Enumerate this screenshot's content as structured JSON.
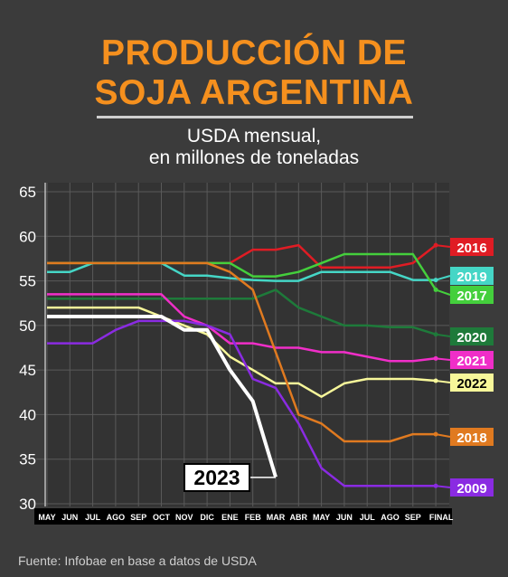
{
  "header": {
    "title_line1": "PRODUCCIÓN DE",
    "title_line2": "SOJA ARGENTINA",
    "subtitle_line1": "USDA mensual,",
    "subtitle_line2": "en millones de toneladas"
  },
  "footer": {
    "source": "Fuente: Infobae en base a datos de USDA"
  },
  "chart_data": {
    "type": "line",
    "categories": [
      "MAY",
      "JUN",
      "JUL",
      "AGO",
      "SEP",
      "OCT",
      "NOV",
      "DIC",
      "ENE",
      "FEB",
      "MAR",
      "ABR",
      "MAY",
      "JUN",
      "JUL",
      "AGO",
      "SEP",
      "FINAL"
    ],
    "ylim": [
      30,
      65
    ],
    "yticks": [
      30,
      35,
      40,
      45,
      50,
      55,
      60,
      65
    ],
    "grid": true,
    "legend": "right-end-labels",
    "series": [
      {
        "name": "2016",
        "color": "#e01c24",
        "values": [
          57,
          57,
          57,
          57,
          57,
          57,
          57,
          57,
          57,
          58.5,
          58.5,
          59,
          56.5,
          56.5,
          56.5,
          56.5,
          57,
          59
        ]
      },
      {
        "name": "2019",
        "color": "#45d6c6",
        "values": [
          56,
          56,
          57,
          57,
          57,
          57,
          55.6,
          55.6,
          55.3,
          55.1,
          55,
          55,
          56,
          56,
          56,
          56,
          55.1,
          55.1
        ]
      },
      {
        "name": "2017",
        "color": "#44cf3c",
        "values": [
          57,
          57,
          57,
          57,
          57,
          57,
          57,
          57,
          57,
          55.5,
          55.5,
          56,
          57,
          58,
          58,
          58,
          58,
          54
        ]
      },
      {
        "name": "2020",
        "color": "#1e7a3a",
        "values": [
          53,
          53,
          53,
          53,
          53,
          53,
          53,
          53,
          53,
          53,
          54,
          52,
          51,
          50,
          50,
          49.8,
          49.8,
          49
        ]
      },
      {
        "name": "2021",
        "color": "#f02ec8",
        "values": [
          53.5,
          53.5,
          53.5,
          53.5,
          53.5,
          53.5,
          51,
          50,
          48,
          48,
          47.5,
          47.5,
          47,
          47,
          46.5,
          46,
          46,
          46.3
        ]
      },
      {
        "name": "2022",
        "color": "#f7f79a",
        "values": [
          52,
          52,
          52,
          52,
          52,
          51,
          50,
          49,
          46.5,
          45,
          43.5,
          43.5,
          42,
          43.5,
          44,
          44,
          44,
          43.8
        ]
      },
      {
        "name": "2018",
        "color": "#e07a20",
        "values": [
          57,
          57,
          57,
          57,
          57,
          57,
          57,
          57,
          56,
          54,
          47,
          40,
          39,
          37,
          37,
          37,
          37.8,
          37.8
        ]
      },
      {
        "name": "2009",
        "color": "#8a2be2",
        "values": [
          48,
          48,
          48,
          49.5,
          50.5,
          50.5,
          50.5,
          50,
          49,
          44,
          43,
          39,
          34,
          32,
          32,
          32,
          32,
          32
        ]
      },
      {
        "name": "2023",
        "color": "#ffffff",
        "values": [
          51,
          51,
          51,
          51,
          51,
          51,
          49.5,
          49.5,
          45,
          41.5,
          33,
          null,
          null,
          null,
          null,
          null,
          null,
          null
        ]
      }
    ]
  }
}
